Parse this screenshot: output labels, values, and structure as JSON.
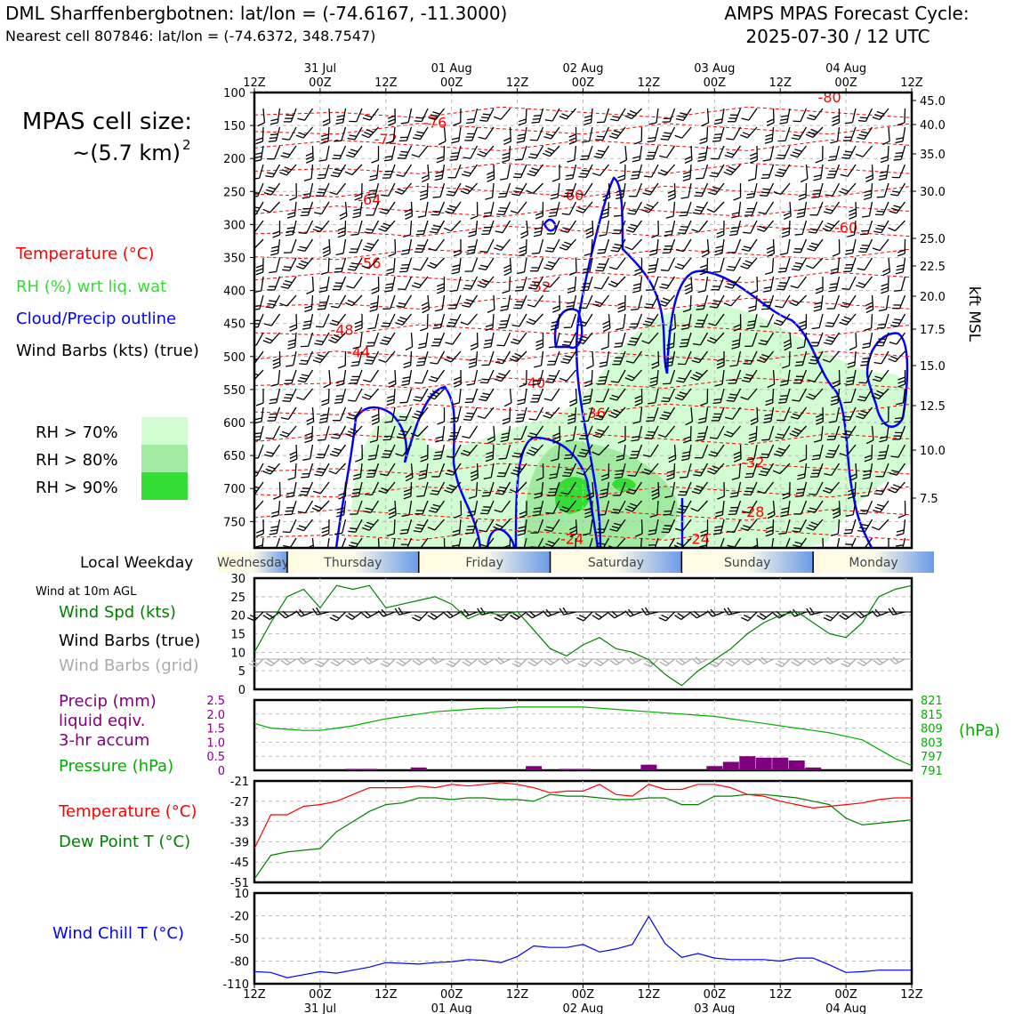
{
  "header": {
    "title": "DML Sharffenbergbotnen: lat/lon = (-74.6167, -11.3000)",
    "subtitle": "Nearest cell 807846: lat/lon = (-74.6372, 348.7547)",
    "cycle_title": "AMPS MPAS Forecast Cycle:",
    "cycle_time": "2025-07-30 / 12 UTC"
  },
  "side": {
    "cell_size_label": "MPAS cell size:",
    "cell_size_value": "~(5.7 km)",
    "cell_size_exp": "2",
    "temperature": "Temperature (°C)",
    "rh": "RH (%) wrt liq. wat",
    "cloud": "Cloud/Precip outline",
    "barbs": "Wind Barbs (kts) (true)",
    "rh70": "RH > 70%",
    "rh80": "RH > 80%",
    "rh90": "RH > 90%",
    "local_weekday": "Local Weekday",
    "wind10m": "Wind at 10m AGL",
    "wspd": "Wind Spd (kts)",
    "wbarbs_true": "Wind Barbs (true)",
    "wbarbs_grid": "Wind Barbs (grid)",
    "precip1": "Precip (mm)",
    "precip2": "liquid eqiv.",
    "precip3": "3-hr accum",
    "pressure": "Pressure (hPa)",
    "pressure_unit": "(hPa)",
    "temp2": "Temperature (°C)",
    "dewpt": "Dew Point T (°C)",
    "windchill": "Wind Chill T (°C)",
    "kft": "kft MSL"
  },
  "colors": {
    "temperature": "#ff0000",
    "rh_label": "#33dd33",
    "cloud": "#0000ff",
    "rh70": "#d1fbd1",
    "rh80": "#a0eba0",
    "rh90": "#33dd33",
    "wspd": "#008000",
    "grid_barb": "#aaaaaa",
    "precip": "#800080",
    "pressure": "#00b000",
    "dewpt": "#008000",
    "windchill": "#0000ff"
  },
  "time_axis": {
    "ticks": [
      "12Z",
      "00Z",
      "12Z",
      "00Z",
      "12Z",
      "00Z",
      "12Z",
      "00Z",
      "12Z",
      "00Z",
      "12Z"
    ],
    "dates": [
      "31 Jul",
      "01 Aug",
      "02 Aug",
      "03 Aug",
      "04 Aug"
    ]
  },
  "weekdays": [
    "Wednesday",
    "Thursday",
    "Friday",
    "Saturday",
    "Sunday",
    "Monday"
  ],
  "chart_data": [
    {
      "type": "heatmap",
      "name": "time-height cross-section",
      "y_ticks": [
        "100",
        "150",
        "200",
        "250",
        "300",
        "350",
        "400",
        "450",
        "500",
        "550",
        "600",
        "650",
        "700",
        "750"
      ],
      "right_ticks": [
        "45.0",
        "40.0",
        "35.0",
        "30.0",
        "25.0",
        "22.5",
        "20.0",
        "17.5",
        "15.0",
        "12.5",
        "10.0",
        "7.5"
      ],
      "ylim": [
        790,
        100
      ],
      "isotherm_labels": [
        {
          "text": "-80",
          "t": 105,
          "p": 107
        },
        {
          "text": "-76",
          "t": 33,
          "p": 145
        },
        {
          "text": "-72",
          "t": 24,
          "p": 170
        },
        {
          "text": "-64",
          "t": 21,
          "p": 262
        },
        {
          "text": "-60",
          "t": 58,
          "p": 255
        },
        {
          "text": "-60",
          "t": 108,
          "p": 304
        },
        {
          "text": "-56",
          "t": 21,
          "p": 358
        },
        {
          "text": "-52",
          "t": 52,
          "p": 394
        },
        {
          "text": "-48",
          "t": 16,
          "p": 459
        },
        {
          "text": "-44",
          "t": 19,
          "p": 493
        },
        {
          "text": "-40",
          "t": 51,
          "p": 539
        },
        {
          "text": "-36",
          "t": 62,
          "p": 585
        },
        {
          "text": "-32",
          "t": 91,
          "p": 660
        },
        {
          "text": "-28",
          "t": 91,
          "p": 735
        },
        {
          "text": "-24",
          "t": 58,
          "p": 776
        },
        {
          "text": "-24",
          "t": 81,
          "p": 776
        }
      ]
    },
    {
      "type": "line",
      "name": "10m wind speed",
      "ylabel": "Wind Spd (kts)",
      "ylim": [
        0,
        30
      ],
      "y_ticks": [
        "0",
        "5",
        "10",
        "15",
        "20",
        "25",
        "30"
      ],
      "x": [
        0,
        3,
        6,
        9,
        12,
        15,
        18,
        21,
        24,
        27,
        30,
        33,
        36,
        39,
        42,
        45,
        48,
        51,
        54,
        57,
        60,
        63,
        66,
        69,
        72,
        75,
        78,
        81,
        84,
        87,
        90,
        93,
        96,
        99,
        102,
        105,
        108,
        111,
        114,
        117,
        120
      ],
      "values": [
        10,
        18,
        25,
        27,
        22,
        28,
        27,
        28,
        22,
        23,
        24,
        25,
        23,
        19,
        21,
        20,
        21,
        16,
        11,
        9,
        12,
        14,
        11,
        10,
        8,
        4,
        1,
        5,
        8,
        11,
        15,
        18,
        20,
        21,
        18,
        15,
        14,
        18,
        25,
        27,
        28
      ]
    },
    {
      "type": "bar",
      "name": "3-hr precip",
      "ylabel": "Precip (mm)",
      "ylim": [
        0,
        2.5
      ],
      "y_ticks": [
        "0",
        "0.5",
        "1.0",
        "1.5",
        "2.0",
        "2.5"
      ],
      "x": [
        18,
        21,
        30,
        51,
        57,
        60,
        72,
        84,
        87,
        90,
        93,
        96,
        99,
        102
      ],
      "values": [
        0.05,
        0.05,
        0.1,
        0.15,
        0.05,
        0.05,
        0.2,
        0.15,
        0.3,
        0.5,
        0.45,
        0.45,
        0.35,
        0.1
      ]
    },
    {
      "type": "line",
      "name": "surface pressure",
      "ylabel": "Pressure (hPa)",
      "ylim": [
        791,
        821
      ],
      "y_ticks": [
        "791",
        "797",
        "803",
        "809",
        "815",
        "821"
      ],
      "x": [
        0,
        3,
        6,
        9,
        12,
        15,
        18,
        21,
        24,
        27,
        30,
        33,
        36,
        39,
        42,
        45,
        48,
        51,
        54,
        57,
        60,
        63,
        66,
        69,
        72,
        75,
        78,
        81,
        84,
        87,
        90,
        93,
        96,
        99,
        102,
        105,
        108,
        111,
        114,
        117,
        120
      ],
      "values": [
        811,
        809,
        808.5,
        808,
        808,
        809,
        810,
        811.5,
        813,
        814,
        815,
        816,
        816.5,
        817,
        817.5,
        817.5,
        818,
        818,
        818,
        818,
        818,
        817.5,
        817,
        816.5,
        816,
        815.5,
        815,
        814.5,
        814,
        813,
        812,
        811,
        810,
        809,
        808,
        807,
        805.5,
        804,
        800,
        796,
        793
      ]
    },
    {
      "type": "line",
      "name": "temperature and dew point",
      "ylim": [
        -51,
        -21
      ],
      "y_ticks": [
        "-51",
        "-45",
        "-39",
        "-33",
        "-27",
        "-21"
      ],
      "x": [
        0,
        3,
        6,
        9,
        12,
        15,
        18,
        21,
        24,
        27,
        30,
        33,
        36,
        39,
        42,
        45,
        48,
        51,
        54,
        57,
        60,
        63,
        66,
        69,
        72,
        75,
        78,
        81,
        84,
        87,
        90,
        93,
        96,
        99,
        102,
        105,
        108,
        111,
        114,
        117,
        120
      ],
      "series": [
        {
          "name": "Temperature (°C)",
          "values": [
            -41,
            -31,
            -31,
            -28.5,
            -28,
            -27,
            -25,
            -23,
            -23,
            -23,
            -22.5,
            -23,
            -22,
            -22.5,
            -22,
            -21.5,
            -22,
            -23,
            -24.5,
            -24,
            -24,
            -22,
            -25,
            -25.5,
            -22,
            -23.5,
            -23.5,
            -22,
            -22,
            -23,
            -25,
            -25.5,
            -27,
            -28,
            -29,
            -28.5,
            -28,
            -27.5,
            -26.5,
            -26,
            -26
          ]
        },
        {
          "name": "Dew Point T (°C)",
          "values": [
            -50,
            -43,
            -42,
            -41.5,
            -41,
            -36,
            -33,
            -30,
            -28,
            -27.5,
            -26,
            -26,
            -26.5,
            -26,
            -26,
            -26.5,
            -26.5,
            -27,
            -25,
            -25.5,
            -25.5,
            -26,
            -26.5,
            -26.5,
            -26,
            -26,
            -28,
            -28,
            -25.5,
            -25.5,
            -25,
            -25,
            -25.5,
            -26,
            -27,
            -28,
            -32,
            -34,
            -33.5,
            -33,
            -32.5
          ]
        }
      ]
    },
    {
      "type": "line",
      "name": "wind chill",
      "ylabel": "Wind Chill T (°C)",
      "ylim": [
        -110,
        10
      ],
      "y_ticks": [
        "-110",
        "-80",
        "-50",
        "-20",
        "10"
      ],
      "x": [
        0,
        3,
        6,
        9,
        12,
        15,
        18,
        21,
        24,
        27,
        30,
        33,
        36,
        39,
        42,
        45,
        48,
        51,
        54,
        57,
        60,
        63,
        66,
        69,
        72,
        75,
        78,
        81,
        84,
        87,
        90,
        93,
        96,
        99,
        102,
        105,
        108,
        111,
        114,
        117,
        120
      ],
      "values": [
        -94,
        -95,
        -102,
        -98,
        -94,
        -96,
        -92,
        -88,
        -82,
        -83,
        -84,
        -82,
        -81,
        -78,
        -79,
        -82,
        -74,
        -60,
        -62,
        -62,
        -58,
        -68,
        -64,
        -58,
        -21,
        -57,
        -75,
        -70,
        -76,
        -78,
        -78,
        -78,
        -80,
        -76,
        -76,
        -85,
        -95,
        -94,
        -92,
        -92,
        -92
      ]
    }
  ]
}
